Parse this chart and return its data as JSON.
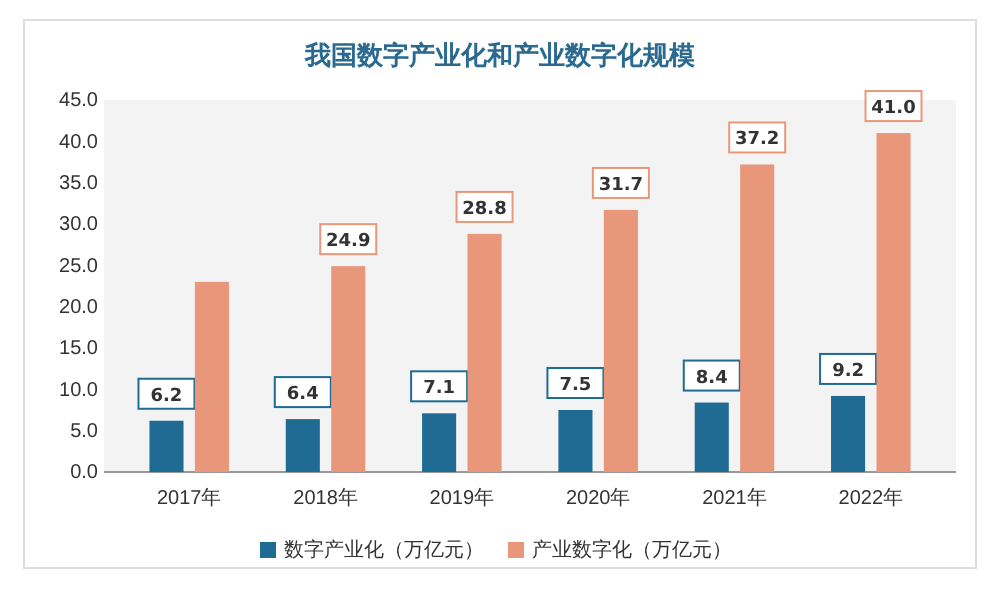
{
  "chart_data": {
    "type": "bar",
    "title": "我国数字产业化和产业数字化规模",
    "categories": [
      "2017年",
      "2018年",
      "2019年",
      "2020年",
      "2021年",
      "2022年"
    ],
    "series": [
      {
        "name": "数字产业化（万亿元）",
        "color": "#1f6b94",
        "values": [
          6.2,
          6.4,
          7.1,
          7.5,
          8.4,
          9.2
        ],
        "value_labels": [
          "6.2",
          "6.4",
          "7.1",
          "7.5",
          "8.4",
          "9.2"
        ]
      },
      {
        "name": "产业数字化（万亿元）",
        "color": "#e9977a",
        "values": [
          23,
          24.9,
          28.8,
          31.7,
          37.2,
          41.0
        ],
        "value_labels": [
          null,
          "24.9",
          "28.8",
          "31.7",
          "37.2",
          "41.0"
        ]
      }
    ],
    "ylim": [
      0,
      45
    ],
    "yticks": [
      {
        "value": 0,
        "label": "0.0"
      },
      {
        "value": 5,
        "label": "5.0"
      },
      {
        "value": 10,
        "label": "10.0"
      },
      {
        "value": 15,
        "label": "15.0"
      },
      {
        "value": 20,
        "label": "20.0"
      },
      {
        "value": 25,
        "label": "25.0"
      },
      {
        "value": 30,
        "label": "30.0"
      },
      {
        "value": 35,
        "label": "35.0"
      },
      {
        "value": 40,
        "label": "40.0"
      },
      {
        "value": 45,
        "label": "45.0"
      }
    ],
    "grid": false,
    "legend": "bottom"
  }
}
